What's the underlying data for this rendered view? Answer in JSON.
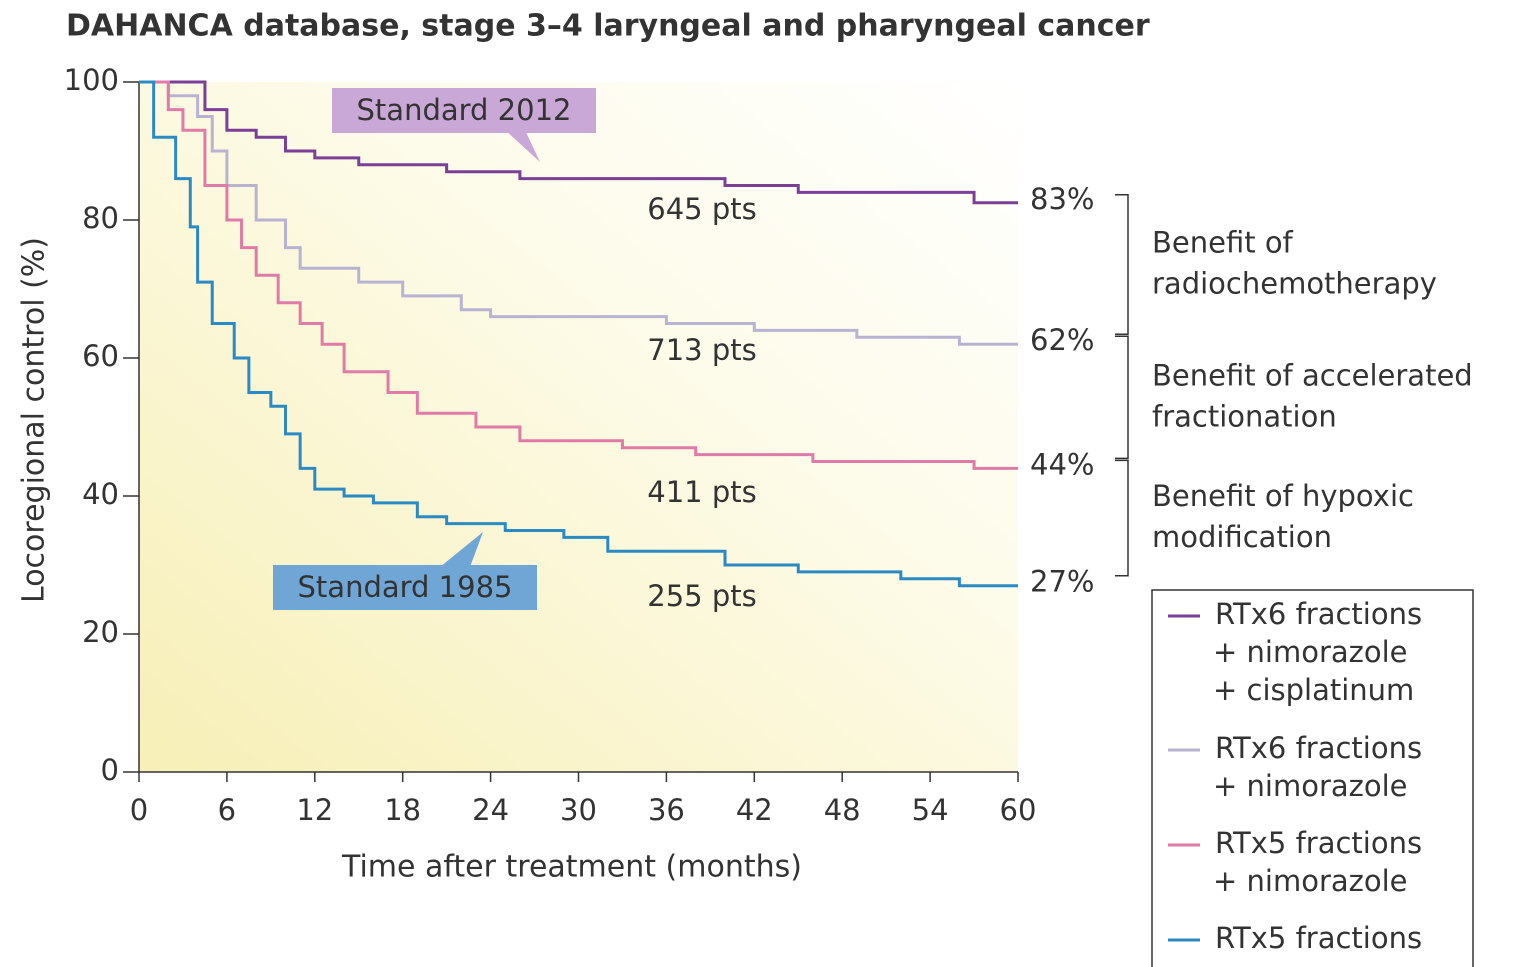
{
  "chart_data": {
    "type": "step",
    "title": "DAHANCA database, stage 3–4 laryngeal and pharyngeal cancer",
    "x_label": "Time after treatment (months)",
    "y_label": "Locoregional control (%)",
    "xlim": [
      0,
      60
    ],
    "ylim": [
      0,
      100
    ],
    "xticks": [
      0,
      6,
      12,
      18,
      24,
      30,
      36,
      42,
      48,
      54,
      60
    ],
    "yticks": [
      0,
      20,
      40,
      60,
      80,
      100
    ],
    "series": [
      {
        "name": [
          "RTx6 fractions",
          "+ nimorazole",
          "+ cisplatinum"
        ],
        "color": "#7b3f98",
        "x": [
          0,
          4,
          4.5,
          6,
          8,
          10,
          12,
          15,
          21,
          26,
          40,
          45,
          57,
          60
        ],
        "values": [
          100,
          100,
          96,
          93,
          92,
          90,
          89,
          88,
          87,
          86,
          85,
          84,
          82.5,
          82.5
        ],
        "count_label": "645 pts",
        "end_label": "83%",
        "callout": "Standard 2012"
      },
      {
        "name": [
          "RTx6 fractions",
          "+ nimorazole"
        ],
        "color": "#b9b3d3",
        "x": [
          0,
          2,
          4,
          5,
          6,
          8,
          10,
          11,
          15,
          18,
          22,
          24,
          36,
          42,
          49,
          56,
          60
        ],
        "values": [
          100,
          98,
          95,
          90,
          85,
          80,
          76,
          73,
          71,
          69,
          67,
          66,
          65,
          64,
          63,
          62,
          62
        ],
        "count_label": "713 pts",
        "end_label": "62%"
      },
      {
        "name": [
          "RTx5 fractions",
          "+ nimorazole"
        ],
        "color": "#e07aa8",
        "x": [
          0,
          2,
          3,
          4.5,
          6,
          7,
          8,
          9.5,
          11,
          12.5,
          14,
          17,
          19,
          23,
          26,
          33,
          38,
          46,
          57,
          60
        ],
        "values": [
          100,
          96,
          93,
          85,
          80,
          76,
          72,
          68,
          65,
          62,
          58,
          55,
          52,
          50,
          48,
          47,
          46,
          45,
          44,
          44
        ],
        "count_label": "411 pts",
        "end_label": "44%"
      },
      {
        "name": [
          "RTx5 fractions"
        ],
        "color": "#2b8ac4",
        "x": [
          0,
          1,
          2.5,
          3.5,
          4,
          5,
          6.5,
          7.5,
          9,
          10,
          11,
          12,
          14,
          16,
          19,
          21,
          25,
          29,
          32,
          40,
          45,
          52,
          56,
          60
        ],
        "values": [
          100,
          92,
          86,
          79,
          71,
          65,
          60,
          55,
          53,
          49,
          44,
          41,
          40,
          39,
          37,
          36,
          35,
          34,
          32,
          30,
          29,
          28,
          27,
          27
        ],
        "count_label": "255 pts",
        "end_label": "27%",
        "callout": "Standard 1985"
      }
    ],
    "brackets": [
      [
        "Benefit of",
        "radiochemotherapy"
      ],
      [
        "Benefit of accelerated",
        "fractionation"
      ],
      [
        "Benefit of hypoxic",
        "modification"
      ]
    ]
  }
}
